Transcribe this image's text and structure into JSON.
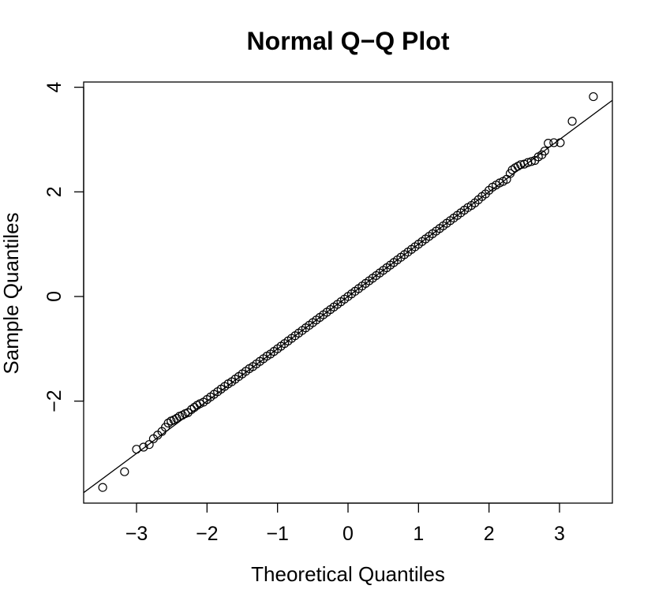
{
  "chart_data": {
    "type": "scatter",
    "title": "Normal Q−Q Plot",
    "xlabel": "Theoretical Quantiles",
    "ylabel": "Sample Quantiles",
    "xlim": [
      -3.75,
      3.75
    ],
    "ylim": [
      -3.95,
      4.1
    ],
    "x_ticks": [
      {
        "value": -3,
        "label": "−3"
      },
      {
        "value": -2,
        "label": "−2"
      },
      {
        "value": -1,
        "label": "−1"
      },
      {
        "value": 0,
        "label": "0"
      },
      {
        "value": 1,
        "label": "1"
      },
      {
        "value": 2,
        "label": "2"
      },
      {
        "value": 3,
        "label": "3"
      }
    ],
    "y_ticks": [
      {
        "value": -2,
        "label": "−2"
      },
      {
        "value": 0,
        "label": "0"
      },
      {
        "value": 2,
        "label": "2"
      },
      {
        "value": 4,
        "label": "4"
      }
    ],
    "reference_line": {
      "intercept": 0.0,
      "slope": 1.0
    },
    "grid": false,
    "legend": "none",
    "marker_color": "#000000",
    "series": [
      {
        "points": [
          [
            -3.48,
            -3.65
          ],
          [
            -3.17,
            -3.35
          ],
          [
            -3.0,
            -2.92
          ],
          [
            -2.9,
            -2.88
          ],
          [
            -2.82,
            -2.83
          ],
          [
            -2.76,
            -2.72
          ],
          [
            -2.7,
            -2.65
          ],
          [
            -2.64,
            -2.58
          ],
          [
            -2.59,
            -2.5
          ],
          [
            -2.55,
            -2.42
          ],
          [
            -2.51,
            -2.38
          ],
          [
            -2.47,
            -2.36
          ],
          [
            -2.43,
            -2.33
          ],
          [
            -2.39,
            -2.29
          ],
          [
            -2.35,
            -2.27
          ],
          [
            -2.31,
            -2.24
          ],
          [
            -2.27,
            -2.22
          ],
          [
            -2.22,
            -2.16
          ],
          [
            -2.18,
            -2.12
          ],
          [
            -2.14,
            -2.08
          ],
          [
            -2.1,
            -2.05
          ],
          [
            -2.05,
            -2.02
          ],
          [
            -2.0,
            -1.97
          ],
          [
            -1.95,
            -1.92
          ],
          [
            -1.9,
            -1.87
          ],
          [
            -1.85,
            -1.82
          ],
          [
            -1.8,
            -1.77
          ],
          [
            -1.75,
            -1.72
          ],
          [
            -1.7,
            -1.67
          ],
          [
            -1.65,
            -1.63
          ],
          [
            -1.6,
            -1.58
          ],
          [
            -1.55,
            -1.53
          ],
          [
            -1.5,
            -1.48
          ],
          [
            -1.45,
            -1.43
          ],
          [
            -1.4,
            -1.38
          ],
          [
            -1.35,
            -1.34
          ],
          [
            -1.3,
            -1.29
          ],
          [
            -1.25,
            -1.24
          ],
          [
            -1.2,
            -1.19
          ],
          [
            -1.15,
            -1.14
          ],
          [
            -1.1,
            -1.1
          ],
          [
            -1.05,
            -1.05
          ],
          [
            -1.0,
            -1.0
          ],
          [
            -0.95,
            -0.95
          ],
          [
            -0.9,
            -0.9
          ],
          [
            -0.85,
            -0.85
          ],
          [
            -0.8,
            -0.8
          ],
          [
            -0.75,
            -0.75
          ],
          [
            -0.7,
            -0.7
          ],
          [
            -0.65,
            -0.65
          ],
          [
            -0.6,
            -0.6
          ],
          [
            -0.55,
            -0.55
          ],
          [
            -0.5,
            -0.5
          ],
          [
            -0.45,
            -0.45
          ],
          [
            -0.4,
            -0.4
          ],
          [
            -0.35,
            -0.35
          ],
          [
            -0.3,
            -0.3
          ],
          [
            -0.25,
            -0.25
          ],
          [
            -0.2,
            -0.2
          ],
          [
            -0.15,
            -0.15
          ],
          [
            -0.1,
            -0.1
          ],
          [
            -0.05,
            -0.05
          ],
          [
            0.0,
            0.0
          ],
          [
            0.05,
            0.05
          ],
          [
            0.1,
            0.1
          ],
          [
            0.15,
            0.15
          ],
          [
            0.2,
            0.2
          ],
          [
            0.25,
            0.25
          ],
          [
            0.3,
            0.3
          ],
          [
            0.35,
            0.35
          ],
          [
            0.4,
            0.4
          ],
          [
            0.45,
            0.45
          ],
          [
            0.5,
            0.5
          ],
          [
            0.55,
            0.55
          ],
          [
            0.6,
            0.6
          ],
          [
            0.65,
            0.65
          ],
          [
            0.7,
            0.7
          ],
          [
            0.75,
            0.75
          ],
          [
            0.8,
            0.8
          ],
          [
            0.85,
            0.85
          ],
          [
            0.9,
            0.9
          ],
          [
            0.95,
            0.95
          ],
          [
            1.0,
            1.0
          ],
          [
            1.05,
            1.05
          ],
          [
            1.1,
            1.1
          ],
          [
            1.15,
            1.15
          ],
          [
            1.2,
            1.2
          ],
          [
            1.25,
            1.25
          ],
          [
            1.3,
            1.3
          ],
          [
            1.35,
            1.35
          ],
          [
            1.4,
            1.4
          ],
          [
            1.45,
            1.45
          ],
          [
            1.5,
            1.5
          ],
          [
            1.55,
            1.55
          ],
          [
            1.6,
            1.6
          ],
          [
            1.65,
            1.65
          ],
          [
            1.7,
            1.7
          ],
          [
            1.75,
            1.74
          ],
          [
            1.8,
            1.79
          ],
          [
            1.85,
            1.85
          ],
          [
            1.9,
            1.91
          ],
          [
            1.95,
            1.96
          ],
          [
            2.0,
            2.03
          ],
          [
            2.05,
            2.09
          ],
          [
            2.1,
            2.13
          ],
          [
            2.15,
            2.17
          ],
          [
            2.2,
            2.2
          ],
          [
            2.25,
            2.24
          ],
          [
            2.3,
            2.35
          ],
          [
            2.33,
            2.42
          ],
          [
            2.37,
            2.46
          ],
          [
            2.41,
            2.49
          ],
          [
            2.45,
            2.52
          ],
          [
            2.5,
            2.53
          ],
          [
            2.55,
            2.56
          ],
          [
            2.6,
            2.58
          ],
          [
            2.65,
            2.6
          ],
          [
            2.7,
            2.67
          ],
          [
            2.75,
            2.71
          ],
          [
            2.79,
            2.78
          ],
          [
            2.84,
            2.93
          ],
          [
            2.92,
            2.94
          ],
          [
            3.01,
            2.94
          ],
          [
            3.18,
            3.35
          ],
          [
            3.48,
            3.82
          ]
        ]
      }
    ]
  }
}
